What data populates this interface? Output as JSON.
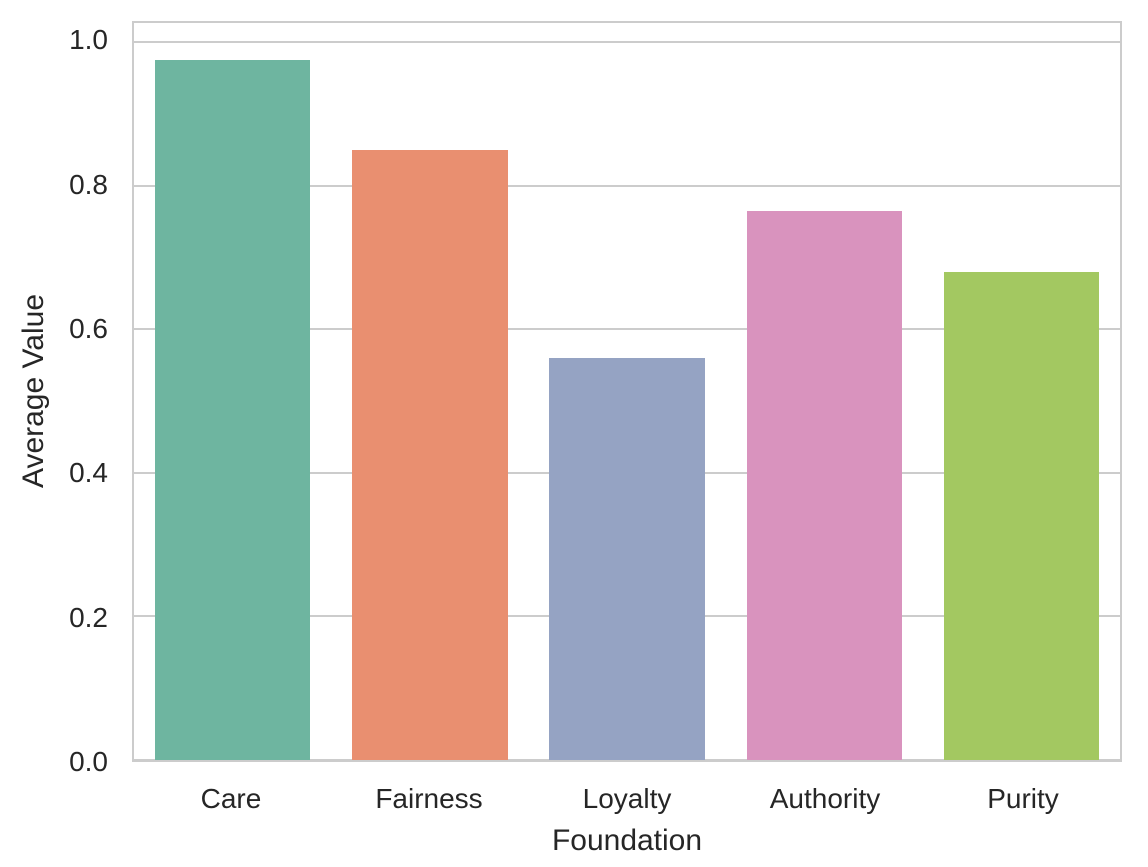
{
  "chart_data": {
    "type": "bar",
    "title": "",
    "categories": [
      "Care",
      "Fairness",
      "Loyalty",
      "Authority",
      "Purity"
    ],
    "values": [
      0.975,
      0.85,
      0.56,
      0.765,
      0.68
    ],
    "xlabel": "Foundation",
    "ylabel": "Average Value",
    "ylim": [
      0,
      1.027
    ],
    "yticks": [
      0.0,
      0.2,
      0.4,
      0.6,
      0.8,
      1.0
    ],
    "ytick_labels": [
      "0.0",
      "0.2",
      "0.4",
      "0.6",
      "0.8",
      "1.0"
    ],
    "grid": true,
    "legend": false,
    "bar_colors": [
      "#6eb5a0",
      "#e98f70",
      "#95a3c3",
      "#d993be",
      "#a3c861"
    ],
    "style": {
      "grid_color": "#cccccc",
      "spine_color": "#cccccc",
      "text_color": "#262626",
      "background": "#ffffff"
    }
  }
}
